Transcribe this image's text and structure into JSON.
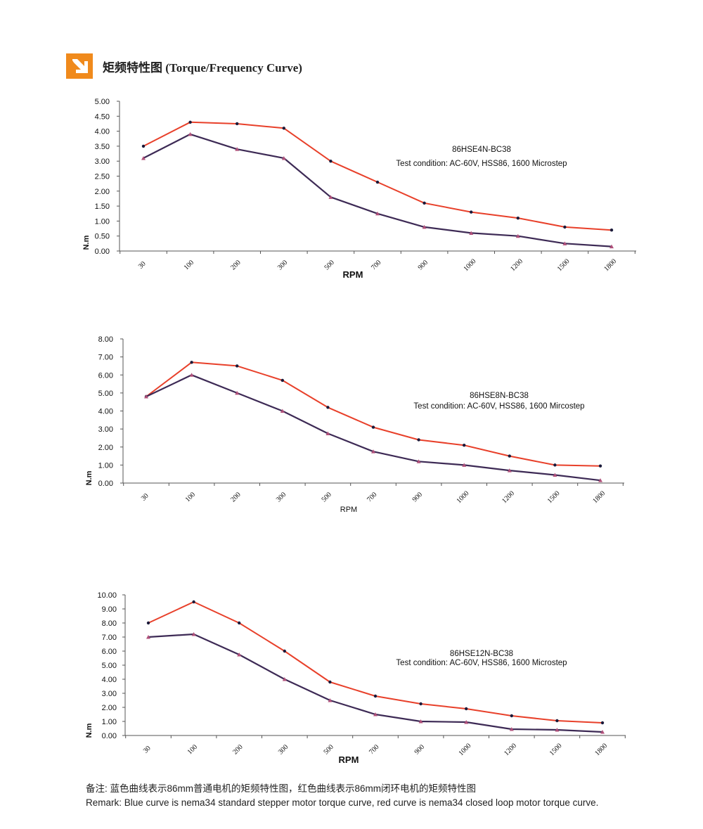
{
  "header": {
    "title": "矩频特性图 (Torque/Frequency Curve)",
    "icon": "arrow-down-right-icon",
    "icon_color": "#f08a1c"
  },
  "colors": {
    "red_series": "#e8402a",
    "blue_series": "#3d2a55",
    "marker": "#1a1a3a"
  },
  "chart_data": [
    {
      "type": "line",
      "categories": [
        "30",
        "100",
        "200",
        "300",
        "500",
        "700",
        "900",
        "1000",
        "1200",
        "1500",
        "1800"
      ],
      "xlabel": "RPM",
      "ylabel": "N.m",
      "ylim": [
        0,
        5
      ],
      "yticks": [
        "0.00",
        "0.50",
        "1.00",
        "1.50",
        "2.00",
        "2.50",
        "3.00",
        "3.50",
        "4.00",
        "4.50",
        "5.00"
      ],
      "grid": false,
      "annotation": [
        "86HSE4N-BC38",
        "Test condition:   AC-60V,   HSS86,   1600 Microstep"
      ],
      "series": [
        {
          "color": "red",
          "values": [
            3.5,
            4.3,
            4.25,
            4.1,
            3.0,
            2.3,
            1.6,
            1.3,
            1.1,
            0.8,
            0.7
          ]
        },
        {
          "color": "blue",
          "values": [
            3.1,
            3.9,
            3.4,
            3.1,
            1.8,
            1.25,
            0.8,
            0.6,
            0.5,
            0.25,
            0.15
          ]
        }
      ]
    },
    {
      "type": "line",
      "categories": [
        "30",
        "100",
        "200",
        "300",
        "500",
        "700",
        "900",
        "1000",
        "1200",
        "1500",
        "1800"
      ],
      "xlabel": "RPM",
      "ylabel": "N.m",
      "ylim": [
        0,
        8
      ],
      "yticks": [
        "0.00",
        "1.00",
        "2.00",
        "3.00",
        "4.00",
        "5.00",
        "6.00",
        "7.00",
        "8.00"
      ],
      "grid": false,
      "annotation": [
        "86HSE8N-BC38",
        "Test condition:    AC-60V,  HSS86,   1600 Mircostep"
      ],
      "series": [
        {
          "color": "red",
          "values": [
            4.8,
            6.7,
            6.5,
            5.7,
            4.2,
            3.1,
            2.4,
            2.1,
            1.5,
            1.0,
            0.95
          ]
        },
        {
          "color": "blue",
          "values": [
            4.8,
            6.0,
            5.0,
            4.0,
            2.75,
            1.75,
            1.2,
            1.0,
            0.7,
            0.45,
            0.15
          ]
        }
      ]
    },
    {
      "type": "line",
      "categories": [
        "30",
        "100",
        "200",
        "300",
        "500",
        "700",
        "900",
        "1000",
        "1200",
        "1500",
        "1800"
      ],
      "xlabel": "RPM",
      "ylabel": "N.m",
      "ylim": [
        0,
        10
      ],
      "yticks": [
        "0.00",
        "1.00",
        "2.00",
        "3.00",
        "4.00",
        "5.00",
        "6.00",
        "7.00",
        "8.00",
        "9.00",
        "10.00"
      ],
      "grid": false,
      "annotation": [
        "86HSE12N-BC38",
        "Test condition:    AC-60V,    HSS86, 1600 Microstep"
      ],
      "series": [
        {
          "color": "red",
          "values": [
            8.0,
            9.5,
            8.0,
            6.0,
            3.8,
            2.8,
            2.25,
            1.9,
            1.4,
            1.05,
            0.9
          ]
        },
        {
          "color": "blue",
          "values": [
            7.0,
            7.2,
            5.75,
            4.0,
            2.5,
            1.5,
            1.0,
            0.95,
            0.45,
            0.4,
            0.25
          ]
        }
      ]
    }
  ],
  "remark": {
    "cn": "备注:  蓝色曲线表示86mm普通电机的矩频特性图，红色曲线表示86mm闭环电机的矩频特性图",
    "en": "Remark: Blue curve is nema34 standard stepper motor torque curve, red curve is nema34 closed loop motor torque curve."
  }
}
